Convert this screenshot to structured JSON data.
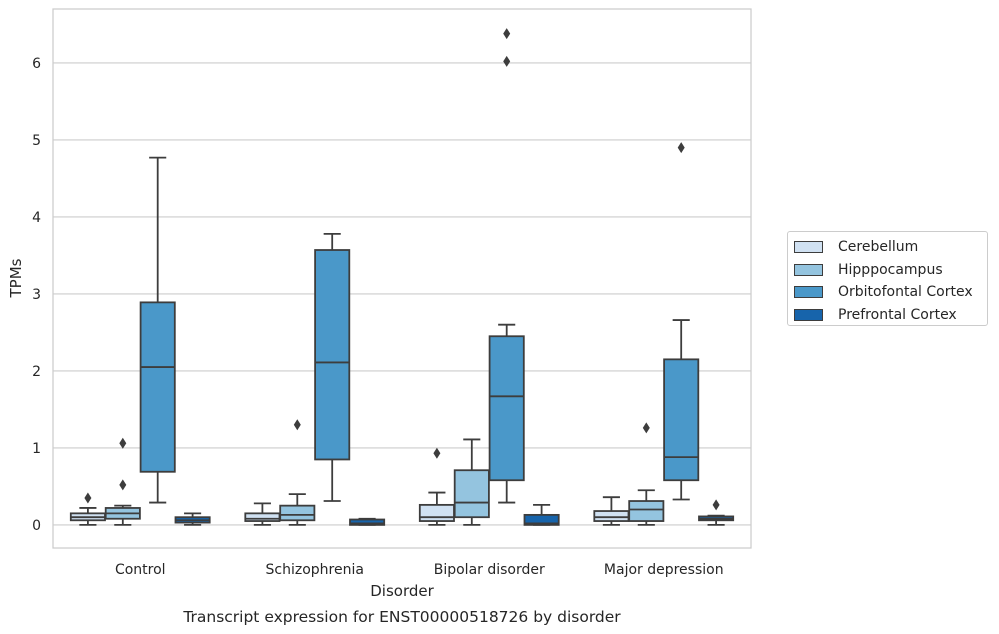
{
  "chart_data": {
    "type": "box",
    "title": "Transcript expression for ENST00000518726 by disorder",
    "xlabel": "Disorder",
    "ylabel": "TPMs",
    "ylim": [
      -0.3,
      6.7
    ],
    "yticks": [
      0,
      1,
      2,
      3,
      4,
      5,
      6
    ],
    "grid": "y",
    "legend_position": "right",
    "categories": [
      "Control",
      "Schizophrenia",
      "Bipolar disorder",
      "Major depression"
    ],
    "series": [
      {
        "name": "Cerebellum",
        "color": "#d0e1f2",
        "boxes": [
          {
            "min": 0.0,
            "q1": 0.06,
            "median": 0.1,
            "q3": 0.15,
            "max": 0.22,
            "outliers": [
              0.35
            ]
          },
          {
            "min": 0.0,
            "q1": 0.05,
            "median": 0.08,
            "q3": 0.15,
            "max": 0.28,
            "outliers": []
          },
          {
            "min": 0.0,
            "q1": 0.05,
            "median": 0.1,
            "q3": 0.26,
            "max": 0.42,
            "outliers": [
              0.93
            ]
          },
          {
            "min": 0.0,
            "q1": 0.05,
            "median": 0.1,
            "q3": 0.18,
            "max": 0.36,
            "outliers": []
          }
        ]
      },
      {
        "name": "Hipppocampus",
        "color": "#94c4df",
        "boxes": [
          {
            "min": 0.0,
            "q1": 0.08,
            "median": 0.15,
            "q3": 0.22,
            "max": 0.25,
            "outliers": [
              0.52,
              1.06
            ]
          },
          {
            "min": 0.0,
            "q1": 0.06,
            "median": 0.13,
            "q3": 0.25,
            "max": 0.4,
            "outliers": [
              1.3
            ]
          },
          {
            "min": 0.0,
            "q1": 0.1,
            "median": 0.29,
            "q3": 0.71,
            "max": 1.11,
            "outliers": []
          },
          {
            "min": 0.0,
            "q1": 0.05,
            "median": 0.2,
            "q3": 0.31,
            "max": 0.45,
            "outliers": [
              1.26
            ]
          }
        ]
      },
      {
        "name": "Orbitofontal Cortex",
        "color": "#4a98c9",
        "boxes": [
          {
            "min": 0.29,
            "q1": 0.69,
            "median": 2.05,
            "q3": 2.89,
            "max": 4.77,
            "outliers": []
          },
          {
            "min": 0.31,
            "q1": 0.85,
            "median": 2.11,
            "q3": 3.57,
            "max": 3.78,
            "outliers": []
          },
          {
            "min": 0.29,
            "q1": 0.58,
            "median": 1.67,
            "q3": 2.45,
            "max": 2.6,
            "outliers": [
              6.02,
              6.38
            ]
          },
          {
            "min": 0.33,
            "q1": 0.58,
            "median": 0.88,
            "q3": 2.15,
            "max": 2.66,
            "outliers": [
              4.9
            ]
          }
        ]
      },
      {
        "name": "Prefrontal Cortex",
        "color": "#1764ab",
        "boxes": [
          {
            "min": 0.0,
            "q1": 0.03,
            "median": 0.06,
            "q3": 0.1,
            "max": 0.15,
            "outliers": []
          },
          {
            "min": 0.0,
            "q1": 0.0,
            "median": 0.02,
            "q3": 0.07,
            "max": 0.08,
            "outliers": []
          },
          {
            "min": 0.0,
            "q1": 0.0,
            "median": 0.02,
            "q3": 0.13,
            "max": 0.26,
            "outliers": []
          },
          {
            "min": 0.0,
            "q1": 0.06,
            "median": 0.08,
            "q3": 0.11,
            "max": 0.12,
            "outliers": [
              0.26
            ]
          }
        ]
      }
    ]
  }
}
